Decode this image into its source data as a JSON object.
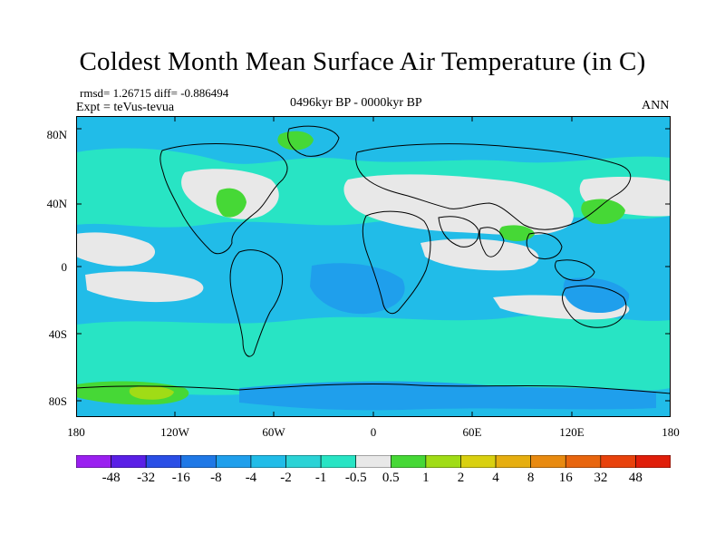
{
  "title": "Coldest Month Mean Surface Air Temperature (in C)",
  "stats": "rmsd= 1.26715 diff= -0.886494",
  "experiment": "Expt = teVus-tevua",
  "period": "0496kyr BP - 0000kyr BP",
  "season": "ANN",
  "y_ticks": [
    "80N",
    "40N",
    "0",
    "40S",
    "80S"
  ],
  "x_ticks": [
    "180",
    "120W",
    "60W",
    "0",
    "60E",
    "120E",
    "180"
  ],
  "colorbar": {
    "labels": [
      "-48",
      "-32",
      "-16",
      "-8",
      "-4",
      "-2",
      "-1",
      "-0.5",
      "0.5",
      "1",
      "2",
      "4",
      "8",
      "16",
      "32",
      "48"
    ],
    "colors": [
      "#9a1ff0",
      "#5a1fe6",
      "#2a4ee6",
      "#1f78e6",
      "#1f9fec",
      "#21bce8",
      "#2bd3d6",
      "#28e4c4",
      "#e8e8e8",
      "#46d836",
      "#a0dc16",
      "#d9d010",
      "#e6ae10",
      "#e88a10",
      "#e8650e",
      "#e8420c",
      "#e01e0a"
    ]
  },
  "field_colors": {
    "ocean_base": "#21bce8",
    "cyan_light": "#28e4c4",
    "neutral": "#e8e8e8",
    "light_blue": "#1f9fec",
    "green": "#46d836",
    "yellow_green": "#a0dc16"
  }
}
